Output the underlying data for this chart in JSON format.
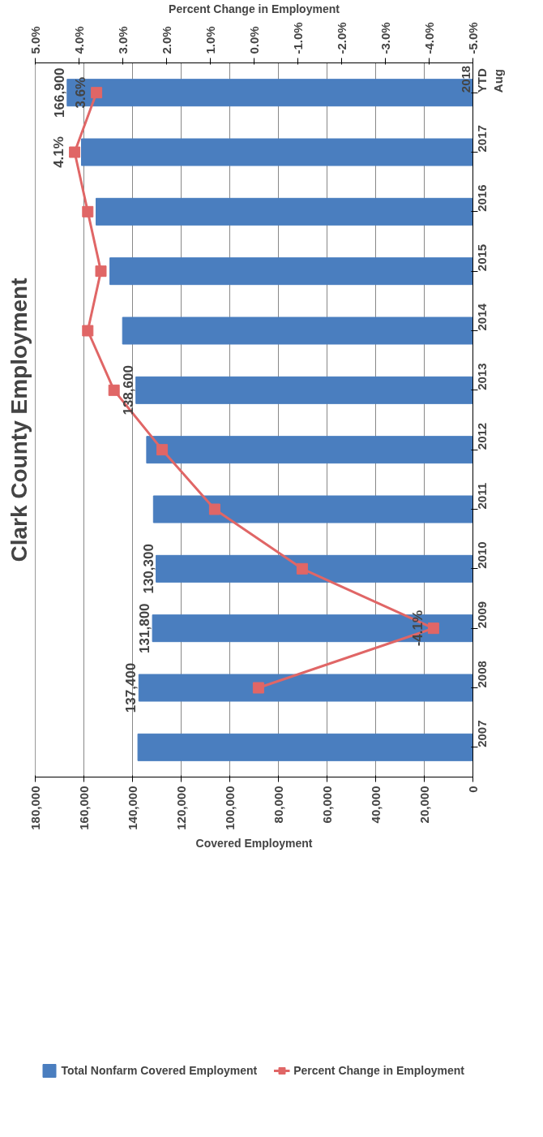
{
  "chart_data": {
    "type": "bar",
    "orientation": "horizontal",
    "title": "Clark County Employment",
    "xlabel": "Covered Employment",
    "x2label": "Percent Change in Employment",
    "categories": [
      "2018\nYTD\nAug",
      "2017",
      "2016",
      "2015",
      "2014",
      "2013",
      "2012",
      "2011",
      "2010",
      "2009",
      "2008",
      "2007"
    ],
    "series": [
      {
        "name": "Total Nonfarm Covered Employment",
        "color": "#4a7ebf",
        "values": [
          166900,
          161000,
          155000,
          149300,
          144100,
          138600,
          134200,
          131400,
          130300,
          131800,
          137400,
          137800
        ],
        "value_labels": [
          "166,900",
          null,
          null,
          null,
          null,
          "138,600",
          null,
          null,
          "130,300",
          "131,800",
          "137,400",
          null
        ]
      },
      {
        "name": "Percent Change in Employment",
        "type": "line",
        "axis": "x2",
        "color": "#e06666",
        "marker": "square",
        "values": [
          3.6,
          4.1,
          3.8,
          3.5,
          3.8,
          3.2,
          2.1,
          0.9,
          -1.1,
          -4.1,
          -0.1,
          null
        ],
        "value_labels": [
          "3.6%",
          "4.1%",
          null,
          null,
          null,
          null,
          null,
          null,
          null,
          "-4.1%",
          null,
          null
        ]
      }
    ],
    "xlim": [
      180000,
      0
    ],
    "xticks": [
      0,
      {
        "value": 20000,
        "label": "20,000"
      },
      {
        "value": 40000,
        "label": "40,000"
      },
      {
        "value": 60000,
        "label": "60,000"
      },
      {
        "value": 80000,
        "label": "80,000"
      },
      {
        "value": 100000,
        "label": "100,000"
      },
      {
        "value": 120000,
        "label": "120,000"
      },
      {
        "value": 140000,
        "label": "140,000"
      },
      {
        "value": 160000,
        "label": "160,000"
      },
      {
        "value": 180000,
        "label": "180,000"
      }
    ],
    "x2lim": [
      5,
      -5
    ],
    "x2ticks": [
      {
        "value": -5,
        "label": "-5.0%"
      },
      {
        "value": -4,
        "label": "-4.0%"
      },
      {
        "value": -3,
        "label": "-3.0%"
      },
      {
        "value": -2,
        "label": "-2.0%"
      },
      {
        "value": -1,
        "label": "-1.0%"
      },
      {
        "value": 0,
        "label": "0.0%"
      },
      {
        "value": 1,
        "label": "1.0%"
      },
      {
        "value": 2,
        "label": "2.0%"
      },
      {
        "value": 3,
        "label": "3.0%"
      },
      {
        "value": 4,
        "label": "4.0%"
      },
      {
        "value": 5,
        "label": "5.0%"
      }
    ],
    "grid": "x",
    "legend": "bottom"
  }
}
